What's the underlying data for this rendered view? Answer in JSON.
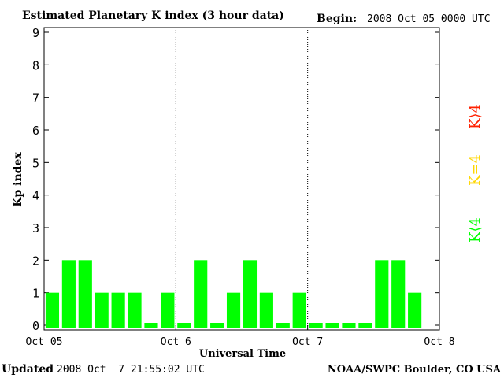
{
  "header": {
    "title": "Estimated Planetary K index (3 hour data)",
    "begin_label": "Begin:",
    "begin_value": "2008 Oct 05 0000 UTC"
  },
  "footer": {
    "updated_label": "Updated",
    "updated_value": "2008 Oct  7 21:55:02 UTC",
    "source": "NOAA/SWPC Boulder, CO USA"
  },
  "legend": {
    "greater": "K⟩4",
    "equal": "K=4",
    "less": "K⟨4"
  },
  "colors": {
    "bar": "#00ff00",
    "k_greater": "#ff2000",
    "k_equal": "#ffd700",
    "k_less": "#00ff00",
    "divider": "#000000"
  },
  "chart_data": {
    "type": "bar",
    "title": "Estimated Planetary K index (3 hour data)",
    "xlabel": "Universal Time",
    "ylabel": "Kp index",
    "ylim": [
      0,
      9
    ],
    "yticks": [
      0,
      1,
      2,
      3,
      4,
      5,
      6,
      7,
      8,
      9
    ],
    "xticks": [
      "Oct 05",
      "Oct 6",
      "Oct 7",
      "Oct 8"
    ],
    "day_dividers": [
      "Oct 6",
      "Oct 7"
    ],
    "grid": false,
    "series": [
      {
        "values": [
          1,
          2,
          2,
          1,
          1,
          1,
          0,
          1,
          0,
          2,
          0,
          1,
          2,
          1,
          0,
          1,
          0,
          0,
          0,
          0,
          2,
          2,
          1
        ]
      }
    ]
  }
}
